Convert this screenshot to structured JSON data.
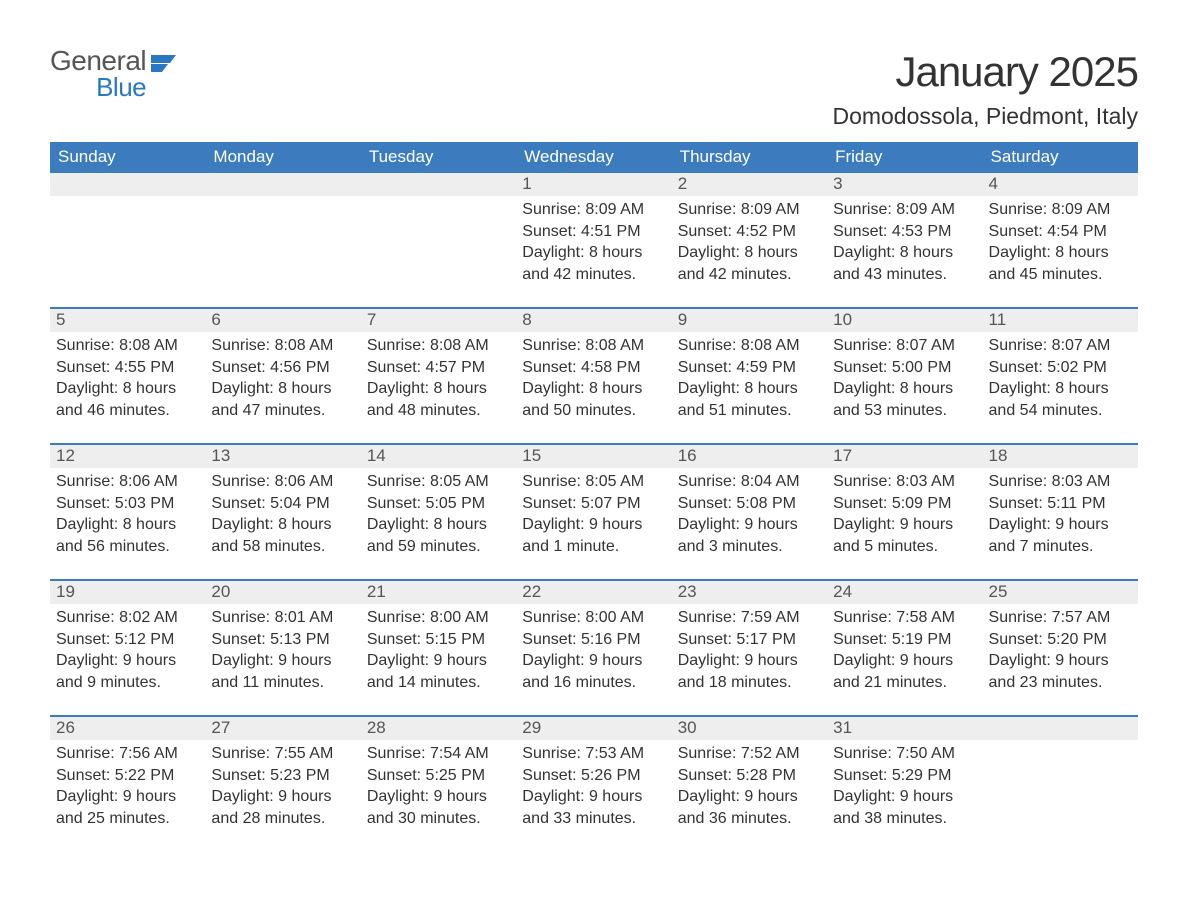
{
  "logo": {
    "word1": "General",
    "word2": "Blue",
    "icon_color": "#2a78c0"
  },
  "title": "January 2025",
  "location": "Domodossola, Piedmont, Italy",
  "header_bg": "#3c7cbe",
  "header_fg": "#ffffff",
  "daynum_bg": "#eeeeee",
  "border_color": "#3c7cbe",
  "text_color": "#333333",
  "columns": [
    "Sunday",
    "Monday",
    "Tuesday",
    "Wednesday",
    "Thursday",
    "Friday",
    "Saturday"
  ],
  "weeks": [
    [
      null,
      null,
      null,
      {
        "n": "1",
        "sunrise": "8:09 AM",
        "sunset": "4:51 PM",
        "daylight": "8 hours and 42 minutes."
      },
      {
        "n": "2",
        "sunrise": "8:09 AM",
        "sunset": "4:52 PM",
        "daylight": "8 hours and 42 minutes."
      },
      {
        "n": "3",
        "sunrise": "8:09 AM",
        "sunset": "4:53 PM",
        "daylight": "8 hours and 43 minutes."
      },
      {
        "n": "4",
        "sunrise": "8:09 AM",
        "sunset": "4:54 PM",
        "daylight": "8 hours and 45 minutes."
      }
    ],
    [
      {
        "n": "5",
        "sunrise": "8:08 AM",
        "sunset": "4:55 PM",
        "daylight": "8 hours and 46 minutes."
      },
      {
        "n": "6",
        "sunrise": "8:08 AM",
        "sunset": "4:56 PM",
        "daylight": "8 hours and 47 minutes."
      },
      {
        "n": "7",
        "sunrise": "8:08 AM",
        "sunset": "4:57 PM",
        "daylight": "8 hours and 48 minutes."
      },
      {
        "n": "8",
        "sunrise": "8:08 AM",
        "sunset": "4:58 PM",
        "daylight": "8 hours and 50 minutes."
      },
      {
        "n": "9",
        "sunrise": "8:08 AM",
        "sunset": "4:59 PM",
        "daylight": "8 hours and 51 minutes."
      },
      {
        "n": "10",
        "sunrise": "8:07 AM",
        "sunset": "5:00 PM",
        "daylight": "8 hours and 53 minutes."
      },
      {
        "n": "11",
        "sunrise": "8:07 AM",
        "sunset": "5:02 PM",
        "daylight": "8 hours and 54 minutes."
      }
    ],
    [
      {
        "n": "12",
        "sunrise": "8:06 AM",
        "sunset": "5:03 PM",
        "daylight": "8 hours and 56 minutes."
      },
      {
        "n": "13",
        "sunrise": "8:06 AM",
        "sunset": "5:04 PM",
        "daylight": "8 hours and 58 minutes."
      },
      {
        "n": "14",
        "sunrise": "8:05 AM",
        "sunset": "5:05 PM",
        "daylight": "8 hours and 59 minutes."
      },
      {
        "n": "15",
        "sunrise": "8:05 AM",
        "sunset": "5:07 PM",
        "daylight": "9 hours and 1 minute."
      },
      {
        "n": "16",
        "sunrise": "8:04 AM",
        "sunset": "5:08 PM",
        "daylight": "9 hours and 3 minutes."
      },
      {
        "n": "17",
        "sunrise": "8:03 AM",
        "sunset": "5:09 PM",
        "daylight": "9 hours and 5 minutes."
      },
      {
        "n": "18",
        "sunrise": "8:03 AM",
        "sunset": "5:11 PM",
        "daylight": "9 hours and 7 minutes."
      }
    ],
    [
      {
        "n": "19",
        "sunrise": "8:02 AM",
        "sunset": "5:12 PM",
        "daylight": "9 hours and 9 minutes."
      },
      {
        "n": "20",
        "sunrise": "8:01 AM",
        "sunset": "5:13 PM",
        "daylight": "9 hours and 11 minutes."
      },
      {
        "n": "21",
        "sunrise": "8:00 AM",
        "sunset": "5:15 PM",
        "daylight": "9 hours and 14 minutes."
      },
      {
        "n": "22",
        "sunrise": "8:00 AM",
        "sunset": "5:16 PM",
        "daylight": "9 hours and 16 minutes."
      },
      {
        "n": "23",
        "sunrise": "7:59 AM",
        "sunset": "5:17 PM",
        "daylight": "9 hours and 18 minutes."
      },
      {
        "n": "24",
        "sunrise": "7:58 AM",
        "sunset": "5:19 PM",
        "daylight": "9 hours and 21 minutes."
      },
      {
        "n": "25",
        "sunrise": "7:57 AM",
        "sunset": "5:20 PM",
        "daylight": "9 hours and 23 minutes."
      }
    ],
    [
      {
        "n": "26",
        "sunrise": "7:56 AM",
        "sunset": "5:22 PM",
        "daylight": "9 hours and 25 minutes."
      },
      {
        "n": "27",
        "sunrise": "7:55 AM",
        "sunset": "5:23 PM",
        "daylight": "9 hours and 28 minutes."
      },
      {
        "n": "28",
        "sunrise": "7:54 AM",
        "sunset": "5:25 PM",
        "daylight": "9 hours and 30 minutes."
      },
      {
        "n": "29",
        "sunrise": "7:53 AM",
        "sunset": "5:26 PM",
        "daylight": "9 hours and 33 minutes."
      },
      {
        "n": "30",
        "sunrise": "7:52 AM",
        "sunset": "5:28 PM",
        "daylight": "9 hours and 36 minutes."
      },
      {
        "n": "31",
        "sunrise": "7:50 AM",
        "sunset": "5:29 PM",
        "daylight": "9 hours and 38 minutes."
      },
      null
    ]
  ],
  "labels": {
    "sunrise": "Sunrise: ",
    "sunset": "Sunset: ",
    "daylight": "Daylight: "
  }
}
